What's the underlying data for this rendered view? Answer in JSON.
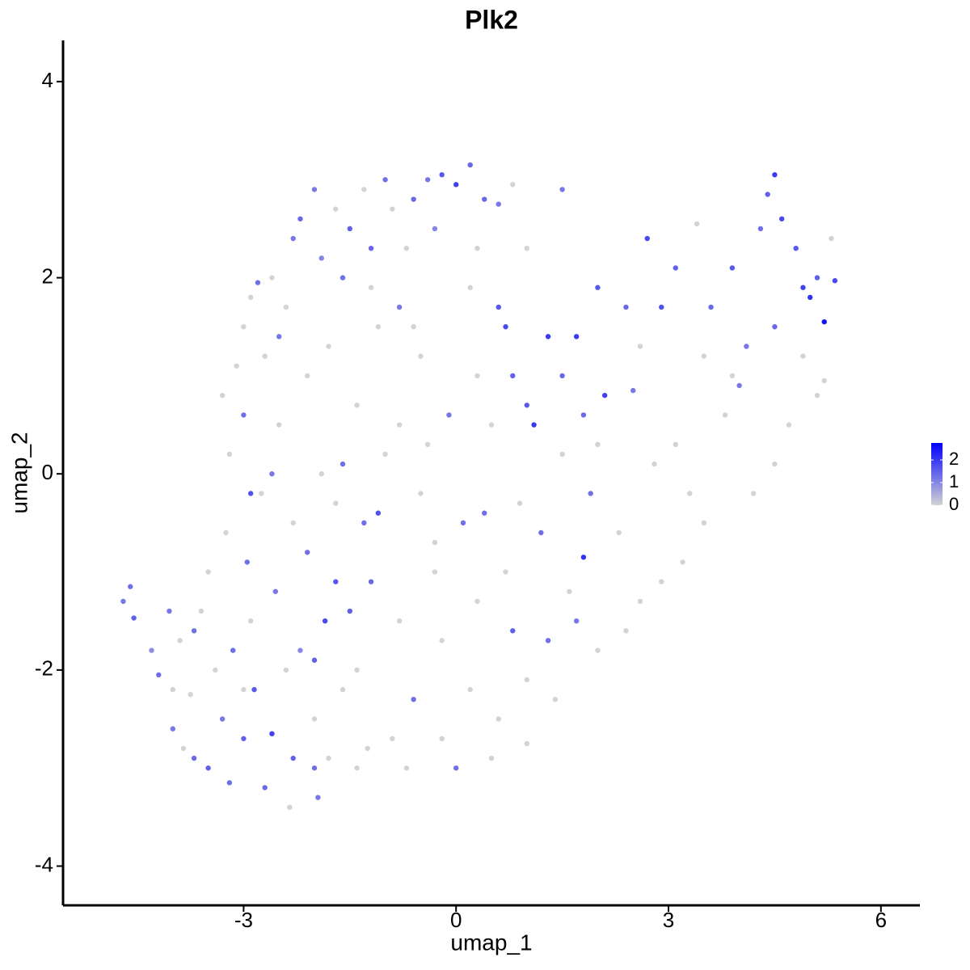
{
  "chart_data": {
    "type": "scatter",
    "title": "Plk2",
    "x_label": "umap_1",
    "y_label": "umap_2",
    "xlim": [
      -5.55,
      6.55
    ],
    "ylim": [
      -4.4,
      4.42
    ],
    "xticks": [
      -3,
      0,
      3,
      6
    ],
    "yticks": [
      -4,
      -2,
      0,
      2,
      4
    ],
    "grid": false,
    "colorbar": {
      "lim": [
        0,
        2.75
      ],
      "ticks": [
        0,
        1,
        2
      ],
      "colors": [
        "#d3d3d3",
        "#0000ff"
      ]
    },
    "points": [
      [
        -4.7,
        -1.3,
        1.2
      ],
      [
        -4.6,
        -1.15,
        1.3
      ],
      [
        -4.55,
        -1.47,
        1.5
      ],
      [
        -4.3,
        -1.8,
        0.9
      ],
      [
        -4.2,
        -2.05,
        1.3
      ],
      [
        -4.05,
        -1.4,
        1.2
      ],
      [
        -4.0,
        -2.6,
        1.2
      ],
      [
        -3.9,
        -1.7,
        0
      ],
      [
        -3.85,
        -2.8,
        0
      ],
      [
        -3.75,
        -2.25,
        0
      ],
      [
        -3.7,
        -2.9,
        1.4
      ],
      [
        -3.6,
        -1.4,
        0
      ],
      [
        -3.5,
        -3.0,
        1.5
      ],
      [
        -3.4,
        -2.0,
        0
      ],
      [
        -3.3,
        -2.5,
        1.2
      ],
      [
        -3.25,
        -0.6,
        0
      ],
      [
        -3.2,
        -3.15,
        1.3
      ],
      [
        -3.15,
        -1.8,
        1.3
      ],
      [
        -3.0,
        -2.7,
        1.5
      ],
      [
        -2.95,
        -0.9,
        1.3
      ],
      [
        -2.9,
        -1.5,
        0
      ],
      [
        -2.85,
        -2.2,
        1.6
      ],
      [
        -2.75,
        -0.2,
        0
      ],
      [
        -2.7,
        -3.2,
        1.4
      ],
      [
        -2.6,
        -2.65,
        1.9
      ],
      [
        -2.55,
        -1.2,
        1.2
      ],
      [
        -2.5,
        0.5,
        0
      ],
      [
        -2.4,
        -2.0,
        0
      ],
      [
        -2.35,
        -3.4,
        0
      ],
      [
        -2.3,
        -2.9,
        1.5
      ],
      [
        -2.2,
        -1.8,
        1.0
      ],
      [
        -2.1,
        -0.8,
        1.3
      ],
      [
        -2.0,
        -2.5,
        0
      ],
      [
        -1.95,
        -3.3,
        1.2
      ],
      [
        -1.9,
        0.0,
        0
      ],
      [
        -1.85,
        -1.5,
        1.8
      ],
      [
        -1.8,
        -2.9,
        0
      ],
      [
        -1.7,
        -1.1,
        1.6
      ],
      [
        -1.6,
        -2.2,
        0
      ],
      [
        -1.5,
        -1.4,
        1.5
      ],
      [
        -1.4,
        -3.0,
        0
      ],
      [
        -1.3,
        -0.5,
        1.3
      ],
      [
        -1.25,
        -2.8,
        0
      ],
      [
        -1.1,
        -0.4,
        1.7
      ],
      [
        -3.3,
        0.8,
        0
      ],
      [
        -3.2,
        0.2,
        0
      ],
      [
        -3.1,
        1.1,
        0
      ],
      [
        -3.0,
        0.6,
        1.3
      ],
      [
        -3.0,
        1.5,
        0
      ],
      [
        -2.9,
        1.8,
        0
      ],
      [
        -2.8,
        1.95,
        1.3
      ],
      [
        -2.7,
        1.2,
        0
      ],
      [
        -2.6,
        2.0,
        0
      ],
      [
        -2.5,
        1.4,
        1.2
      ],
      [
        -2.4,
        1.7,
        0
      ],
      [
        -2.3,
        2.4,
        1.2
      ],
      [
        -2.2,
        2.6,
        1.4
      ],
      [
        -2.1,
        1.0,
        0
      ],
      [
        -2.0,
        2.9,
        1.2
      ],
      [
        -1.9,
        2.2,
        1.0
      ],
      [
        -1.8,
        1.3,
        0
      ],
      [
        -1.7,
        2.7,
        0
      ],
      [
        -1.6,
        2.0,
        1.3
      ],
      [
        -1.5,
        2.5,
        1.5
      ],
      [
        -1.4,
        0.7,
        0
      ],
      [
        -1.3,
        2.9,
        0
      ],
      [
        -1.2,
        2.3,
        1.4
      ],
      [
        -1.1,
        1.5,
        0
      ],
      [
        -1.0,
        3.0,
        1.3
      ],
      [
        -0.9,
        2.7,
        0
      ],
      [
        -0.8,
        1.7,
        1.2
      ],
      [
        -0.7,
        2.3,
        0
      ],
      [
        -0.6,
        2.8,
        1.4
      ],
      [
        -0.5,
        1.2,
        0
      ],
      [
        -0.4,
        3.0,
        1.2
      ],
      [
        -0.3,
        2.5,
        1.0
      ],
      [
        -0.2,
        3.05,
        1.6
      ],
      [
        0.0,
        2.95,
        1.9
      ],
      [
        0.2,
        3.15,
        1.4
      ],
      [
        0.3,
        2.3,
        0
      ],
      [
        0.4,
        2.8,
        1.4
      ],
      [
        0.6,
        2.75,
        1.2
      ],
      [
        0.8,
        2.95,
        0
      ],
      [
        0.6,
        1.7,
        1.6
      ],
      [
        1.0,
        2.3,
        0
      ],
      [
        1.5,
        2.9,
        1.2
      ],
      [
        0.7,
        1.5,
        1.8
      ],
      [
        0.8,
        1.0,
        1.5
      ],
      [
        1.0,
        0.7,
        1.6
      ],
      [
        1.1,
        0.5,
        2.0
      ],
      [
        1.3,
        1.4,
        2.0
      ],
      [
        1.5,
        1.0,
        1.4
      ],
      [
        1.7,
        1.4,
        2.0
      ],
      [
        1.8,
        0.6,
        1.4
      ],
      [
        2.0,
        1.9,
        1.6
      ],
      [
        2.1,
        0.8,
        1.9
      ],
      [
        2.4,
        1.7,
        1.4
      ],
      [
        2.5,
        0.85,
        1.2
      ],
      [
        2.7,
        2.4,
        1.8
      ],
      [
        2.9,
        1.7,
        1.7
      ],
      [
        3.1,
        2.1,
        1.5
      ],
      [
        3.4,
        2.55,
        0
      ],
      [
        3.6,
        1.7,
        1.4
      ],
      [
        3.9,
        2.1,
        1.6
      ],
      [
        4.1,
        1.3,
        1.2
      ],
      [
        4.3,
        2.5,
        1.3
      ],
      [
        4.4,
        2.85,
        1.5
      ],
      [
        4.5,
        3.05,
        2.0
      ],
      [
        4.6,
        2.6,
        1.8
      ],
      [
        4.8,
        2.3,
        1.6
      ],
      [
        4.9,
        1.9,
        1.9
      ],
      [
        5.0,
        1.8,
        2.1
      ],
      [
        5.1,
        2.0,
        1.5
      ],
      [
        5.2,
        1.55,
        2.5
      ],
      [
        5.35,
        1.97,
        1.8
      ],
      [
        5.3,
        2.4,
        0
      ],
      [
        5.1,
        0.8,
        0
      ],
      [
        5.2,
        0.95,
        0
      ],
      [
        4.9,
        1.2,
        0
      ],
      [
        4.7,
        0.5,
        0
      ],
      [
        4.5,
        0.1,
        0
      ],
      [
        4.2,
        -0.2,
        0
      ],
      [
        3.8,
        0.6,
        0
      ],
      [
        3.5,
        -0.5,
        0
      ],
      [
        3.2,
        -0.9,
        0
      ],
      [
        3.1,
        0.3,
        0
      ],
      [
        2.9,
        -1.1,
        0
      ],
      [
        2.6,
        -1.3,
        0
      ],
      [
        2.4,
        -1.6,
        0
      ],
      [
        2.3,
        -0.6,
        0
      ],
      [
        2.0,
        -1.8,
        0
      ],
      [
        1.9,
        -0.2,
        1.3
      ],
      [
        1.8,
        -0.85,
        2.1
      ],
      [
        1.6,
        -1.2,
        0
      ],
      [
        1.3,
        -1.7,
        1.3
      ],
      [
        1.0,
        -2.1,
        0
      ],
      [
        1.0,
        -2.75,
        0
      ],
      [
        0.8,
        -1.6,
        1.5
      ],
      [
        0.6,
        -2.5,
        0
      ],
      [
        0.5,
        -2.9,
        0
      ],
      [
        0.4,
        -0.4,
        1.3
      ],
      [
        0.3,
        -1.3,
        0
      ],
      [
        0.2,
        -2.2,
        0
      ],
      [
        0.0,
        -3.0,
        1.3
      ],
      [
        -0.2,
        -2.7,
        0
      ],
      [
        -0.3,
        -1.0,
        0
      ],
      [
        -0.5,
        -0.2,
        0
      ],
      [
        -0.6,
        -2.3,
        1.3
      ],
      [
        -0.7,
        -3.0,
        0
      ],
      [
        -0.8,
        -1.5,
        0
      ],
      [
        -0.9,
        -2.7,
        0
      ],
      [
        -1.0,
        0.2,
        0
      ],
      [
        -0.1,
        0.6,
        1.2
      ],
      [
        0.3,
        1.0,
        0
      ],
      [
        0.1,
        -0.5,
        1.3
      ],
      [
        -0.4,
        0.3,
        0
      ],
      [
        -0.8,
        0.5,
        0
      ],
      [
        -1.2,
        -1.1,
        1.4
      ],
      [
        -1.6,
        0.1,
        1.3
      ],
      [
        -2.0,
        -1.9,
        1.5
      ],
      [
        -2.6,
        0.0,
        1.2
      ],
      [
        -2.9,
        -0.2,
        1.7
      ],
      [
        1.5,
        0.2,
        0
      ],
      [
        2.0,
        0.3,
        0
      ],
      [
        2.8,
        0.1,
        0
      ],
      [
        3.3,
        -0.2,
        0
      ],
      [
        4.0,
        0.9,
        1.2
      ],
      [
        4.5,
        1.5,
        1.4
      ],
      [
        3.9,
        1.0,
        0
      ],
      [
        3.5,
        1.2,
        0
      ],
      [
        2.6,
        1.3,
        0
      ],
      [
        0.9,
        -0.3,
        0
      ],
      [
        1.2,
        -0.6,
        1.3
      ],
      [
        -0.2,
        -1.7,
        0
      ],
      [
        -1.4,
        -2.0,
        0
      ],
      [
        -1.7,
        -0.3,
        0
      ],
      [
        -2.3,
        -0.5,
        0
      ],
      [
        -3.5,
        -1.0,
        0
      ],
      [
        -3.7,
        -1.6,
        1.3
      ],
      [
        -4.0,
        -2.2,
        0
      ],
      [
        -3.0,
        -2.2,
        0
      ],
      [
        -2.0,
        -3.0,
        1.3
      ],
      [
        -1.2,
        1.9,
        0
      ],
      [
        -0.6,
        1.5,
        0
      ],
      [
        0.2,
        1.9,
        0
      ],
      [
        0.5,
        0.5,
        0
      ],
      [
        -0.3,
        -0.7,
        0
      ],
      [
        0.7,
        -1.0,
        0
      ],
      [
        1.4,
        -2.3,
        0
      ],
      [
        1.7,
        -1.5,
        1.2
      ]
    ]
  }
}
